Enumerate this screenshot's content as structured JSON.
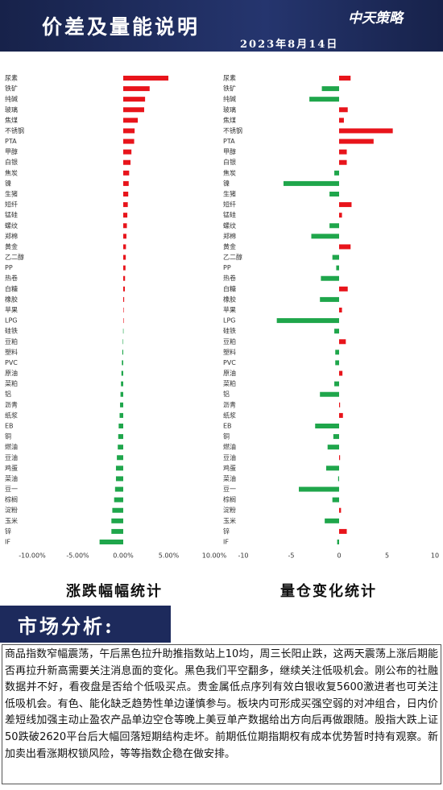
{
  "header": {
    "title": "价差及量能说明",
    "date": "2023年8月14日",
    "logo": "中天策略"
  },
  "chart_data": [
    {
      "type": "bar",
      "orientation": "horizontal",
      "title": "涨跌幅幅统计",
      "categories": [
        "尿素",
        "铁矿",
        "纯碱",
        "玻璃",
        "焦煤",
        "不锈钢",
        "PTA",
        "甲醇",
        "白银",
        "焦炭",
        "镍",
        "生猪",
        "短纤",
        "锰硅",
        "螺纹",
        "郑棉",
        "黄金",
        "乙二醇",
        "PP",
        "热卷",
        "白糖",
        "橡胶",
        "苹果",
        "LPG",
        "硅铁",
        "豆粕",
        "塑料",
        "PVC",
        "原油",
        "菜粕",
        "铝",
        "沥青",
        "纸浆",
        "EB",
        "铜",
        "燃油",
        "豆油",
        "鸡蛋",
        "菜油",
        "豆一",
        "棕榈",
        "淀粉",
        "玉米",
        "锌",
        "IF"
      ],
      "values": [
        4.96,
        2.9,
        2.4,
        2.3,
        1.6,
        1.25,
        1.2,
        0.9,
        0.8,
        0.65,
        0.6,
        0.55,
        0.5,
        0.45,
        0.4,
        0.35,
        0.3,
        0.28,
        0.25,
        0.2,
        0.18,
        0.1,
        0.05,
        0.02,
        -0.02,
        -0.05,
        -0.1,
        -0.15,
        -0.2,
        -0.25,
        -0.3,
        -0.35,
        -0.4,
        -0.5,
        -0.55,
        -0.6,
        -0.7,
        -0.8,
        -0.8,
        -0.9,
        -1.0,
        -1.2,
        -1.3,
        -1.3,
        -2.6
      ],
      "xlim": [
        -10,
        10
      ],
      "xticks": [
        {
          "value": -10,
          "label": "-10.00%"
        },
        {
          "value": -5,
          "label": "-5.00%"
        },
        {
          "value": 0,
          "label": "0.00%"
        },
        {
          "value": 5,
          "label": "5.00%"
        },
        {
          "value": 10,
          "label": "10.00%"
        }
      ],
      "positive_color": "#e8141b",
      "negative_color": "#1fa64b"
    },
    {
      "type": "bar",
      "orientation": "horizontal",
      "title": "量仓变化统计",
      "categories": [
        "尿素",
        "铁矿",
        "纯碱",
        "玻璃",
        "焦煤",
        "不锈钢",
        "PTA",
        "甲醇",
        "白银",
        "焦炭",
        "镍",
        "生猪",
        "短纤",
        "锰硅",
        "螺纹",
        "郑棉",
        "黄金",
        "乙二醇",
        "PP",
        "热卷",
        "白糖",
        "橡胶",
        "苹果",
        "LPG",
        "硅铁",
        "豆粕",
        "塑料",
        "PVC",
        "原油",
        "菜粕",
        "铝",
        "沥青",
        "纸浆",
        "EB",
        "铜",
        "燃油",
        "豆油",
        "鸡蛋",
        "菜油",
        "豆一",
        "棕榈",
        "淀粉",
        "玉米",
        "锌",
        "IF"
      ],
      "values": [
        1.2,
        -1.8,
        -3.1,
        0.9,
        0.5,
        5.6,
        3.6,
        0.8,
        0.8,
        -0.5,
        -5.8,
        -1.0,
        1.3,
        0.3,
        -1.0,
        -2.9,
        1.2,
        -0.7,
        -0.3,
        -1.9,
        0.9,
        -2.0,
        0.3,
        -6.5,
        -0.5,
        0.7,
        -0.4,
        -0.4,
        0.35,
        -0.5,
        -2.0,
        0.1,
        0.4,
        -2.5,
        -0.6,
        -1.2,
        0.1,
        -1.35,
        -0.1,
        -4.2,
        -0.7,
        0.2,
        -1.5,
        0.8,
        -0.2
      ],
      "xlim": [
        -10,
        10
      ],
      "xticks": [
        -10,
        -5,
        0,
        5,
        10
      ],
      "positive_color": "#e8141b",
      "negative_color": "#1fa64b"
    }
  ],
  "analysis": {
    "title": "市场分析:",
    "text": "商品指数窄幅震荡，午后黑色拉升助推指数站上10均，周三长阳止跌，这两天震荡上涨后期能否再拉升新高需要关注消息面的变化。黑色我们平空翻多，继续关注低吸机会。刚公布的社融数据并不好，看夜盘是否给个低吸买点。贵金属低点序列有效白银收复5600激进者也可关注低吸机会。有色、能化缺乏趋势性单边谨慎参与。板块内可形成买强空弱的对冲组合，日内价差短线加强主动止盈农产品单边空仓等晚上美豆单产数据给出方向后再做跟随。股指大跌上证50跌破2620平台后大幅回落短期结构走坏。前期低位期指期权有成本优势暂时持有观察。新加卖出看涨期权锁风险，等等指数企稳在做安排。"
  }
}
